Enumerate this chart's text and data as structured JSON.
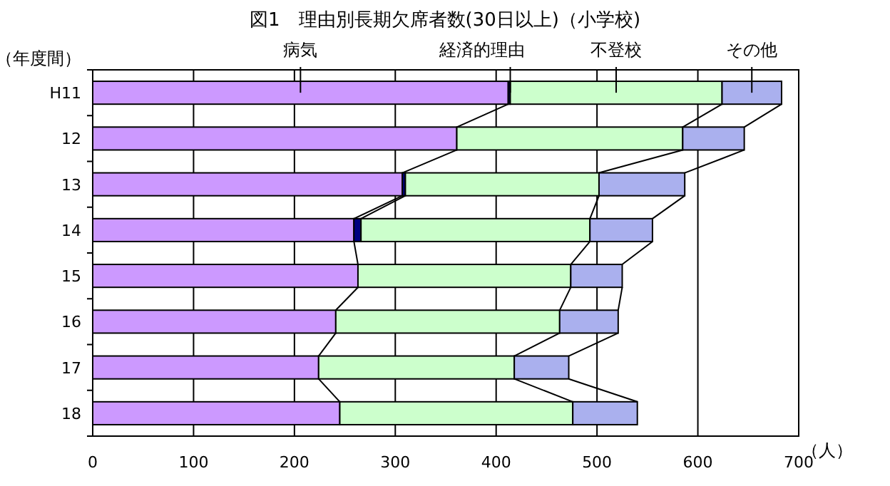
{
  "chart_data": {
    "type": "bar",
    "orientation": "horizontal",
    "stacked": true,
    "title": "図1　理由別長期欠席者数(30日以上)（小学校)",
    "ylabel": "（年度間）",
    "xlabel": "（人）",
    "categories": [
      "H11",
      "12",
      "13",
      "14",
      "15",
      "16",
      "17",
      "18"
    ],
    "series": [
      {
        "name": "病気",
        "color": "#cc99ff",
        "values": [
          412,
          361,
          307,
          259,
          263,
          241,
          224,
          245
        ]
      },
      {
        "name": "経済的理由",
        "color": "#000080",
        "values": [
          2,
          null,
          3,
          7,
          null,
          null,
          null,
          null
        ]
      },
      {
        "name": "不登校",
        "color": "#ccffcc",
        "values": [
          210,
          224,
          192,
          227,
          211,
          222,
          194,
          231
        ]
      },
      {
        "name": "その他",
        "color": "#aab0ee",
        "values": [
          59,
          61,
          85,
          62,
          51,
          58,
          54,
          64
        ]
      }
    ],
    "xlim": [
      0,
      700
    ],
    "xticks": [
      0,
      100,
      200,
      300,
      400,
      500,
      600,
      700
    ],
    "grid": "x",
    "legend": "top"
  }
}
